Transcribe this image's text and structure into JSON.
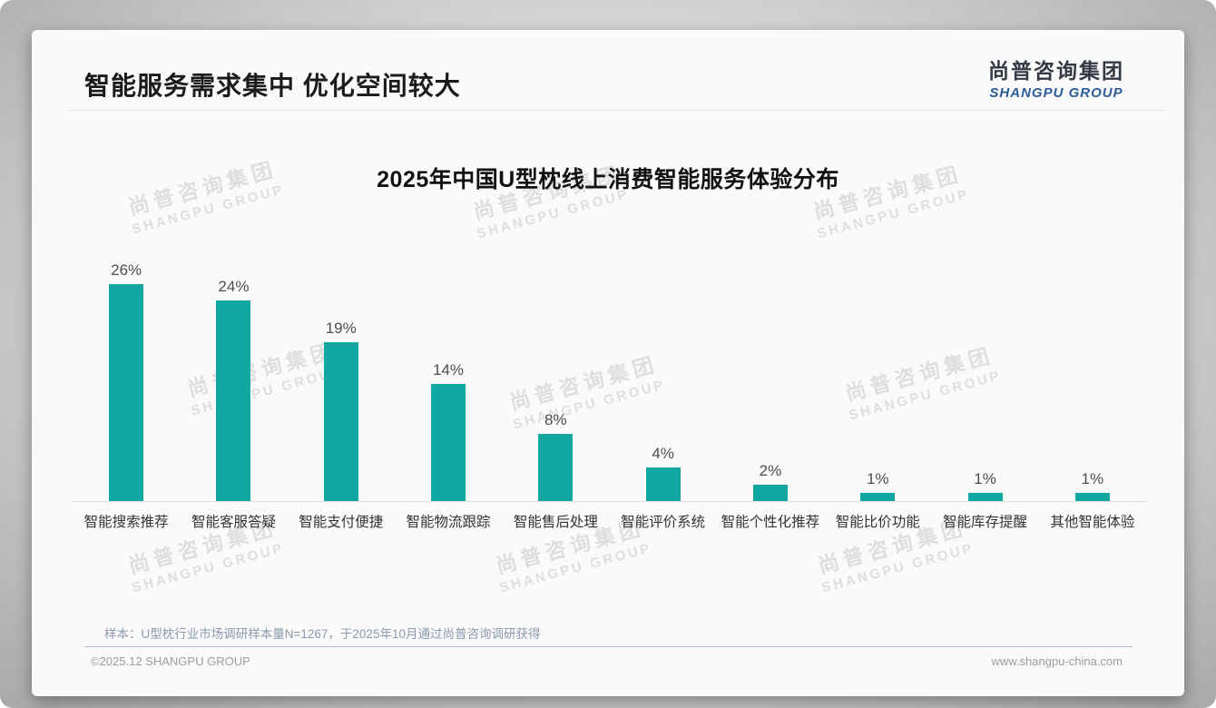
{
  "slide": {
    "header": {
      "title": "智能服务需求集中 优化空间较大"
    },
    "logo": {
      "cn": "尚普咨询集团",
      "en": "SHANGPU GROUP"
    },
    "watermark": {
      "cn": "尚普咨询集团",
      "en": "SHANGPU GROUP"
    },
    "footer": {
      "note": "样本：U型枕行业市场调研样本量N=1267，于2025年10月通过尚普咨询调研获得",
      "copyright": "©2025.12 SHANGPU GROUP",
      "website": "www.shangpu-china.com"
    }
  },
  "chart_data": {
    "type": "bar",
    "title": "2025年中国U型枕线上消费智能服务体验分布",
    "categories": [
      "智能搜索推荐",
      "智能客服答疑",
      "智能支付便捷",
      "智能物流跟踪",
      "智能售后处理",
      "智能评价系统",
      "智能个性化推荐",
      "智能比价功能",
      "智能库存提醒",
      "其他智能体验"
    ],
    "values": [
      26,
      24,
      19,
      14,
      8,
      4,
      2,
      1,
      1,
      1
    ],
    "value_labels": [
      "26%",
      "24%",
      "19%",
      "14%",
      "8%",
      "4%",
      "2%",
      "1%",
      "1%",
      "1%"
    ],
    "unit": "%",
    "xlabel": "",
    "ylabel": "",
    "ylim": [
      0,
      28
    ],
    "grid": false,
    "legend": "none",
    "bar_color": "#12A7A1",
    "axis_line_color": "#dbdbdb"
  }
}
